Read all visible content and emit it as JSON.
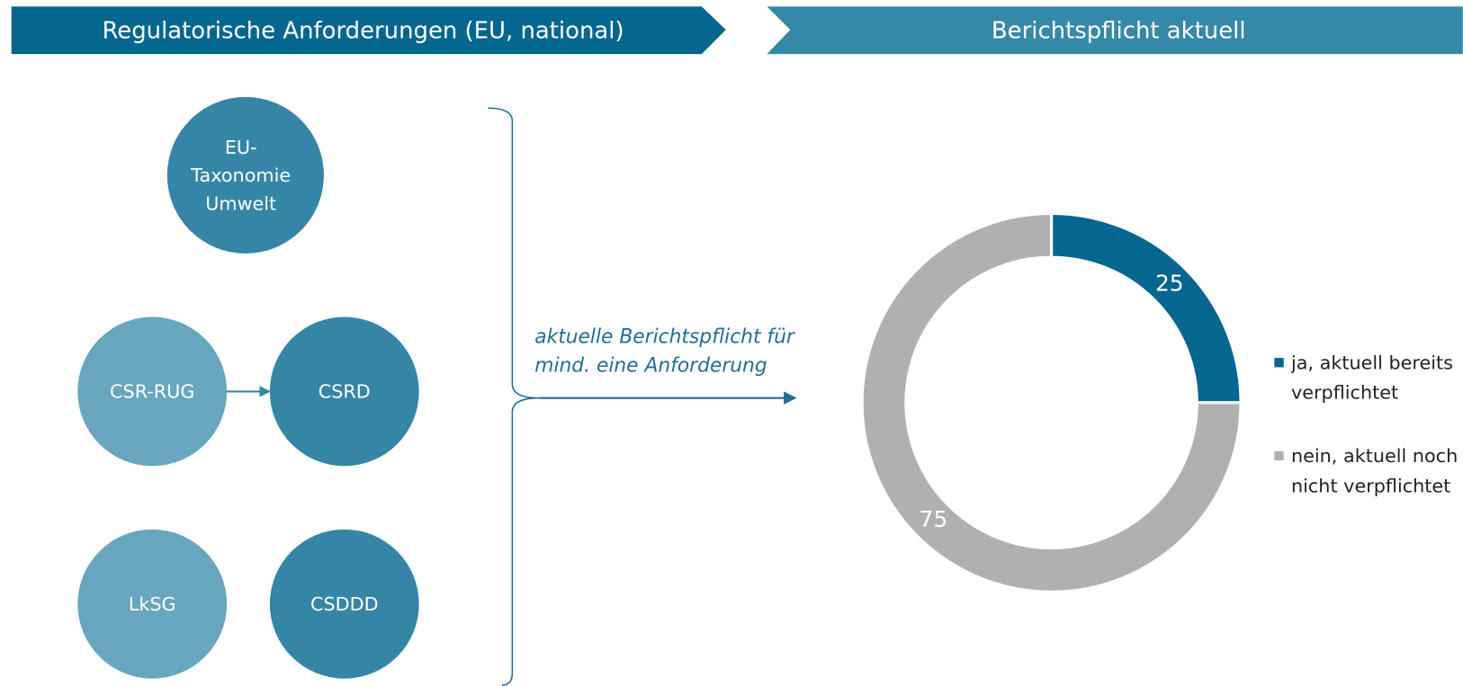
{
  "headers": [
    "Regulatorische Anforderungen (EU, national)",
    "Berichtspflicht aktuell"
  ],
  "requirements": [
    {
      "label": "EU-Taxonomie Umwelt"
    },
    {
      "label": "CSR-RUG"
    },
    {
      "label": "CSRD"
    },
    {
      "label": "LkSG"
    },
    {
      "label": "CSDDD"
    }
  ],
  "note": [
    "aktuelle Berichtspflicht für",
    "mind. eine Anforderung"
  ],
  "chart_data": {
    "type": "donut",
    "categories": [
      "ja, aktuell bereits verpflichtet",
      "nein, aktuell noch nicht verpflichtet"
    ],
    "values": [
      25,
      75
    ],
    "colors": [
      "#05668f",
      "#b0b0b0"
    ]
  }
}
